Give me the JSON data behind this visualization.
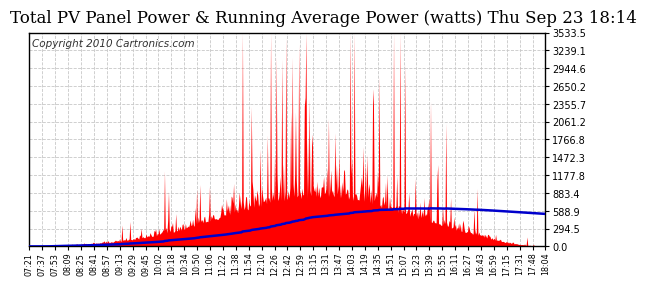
{
  "title": "Total PV Panel Power & Running Average Power (watts) Thu Sep 23 18:14",
  "copyright": "Copyright 2010 Cartronics.com",
  "background_color": "#ffffff",
  "plot_bg_color": "#ffffff",
  "grid_color": "#c8c8c8",
  "bar_color": "#ff0000",
  "line_color": "#0000cc",
  "yticks": [
    0.0,
    294.5,
    588.9,
    883.4,
    1177.8,
    1472.3,
    1766.8,
    2061.2,
    2355.7,
    2650.2,
    2944.6,
    3239.1,
    3533.5
  ],
  "xtick_labels": [
    "07:21",
    "07:37",
    "07:53",
    "08:09",
    "08:25",
    "08:41",
    "08:57",
    "09:13",
    "09:29",
    "09:45",
    "10:02",
    "10:18",
    "10:34",
    "10:50",
    "11:06",
    "11:22",
    "11:38",
    "11:54",
    "12:10",
    "12:26",
    "12:42",
    "12:59",
    "13:15",
    "13:31",
    "13:47",
    "14:03",
    "14:19",
    "14:35",
    "14:51",
    "15:07",
    "15:23",
    "15:39",
    "15:55",
    "16:11",
    "16:27",
    "16:43",
    "16:59",
    "17:15",
    "17:31",
    "17:48",
    "18:04"
  ],
  "ymax": 3533.5,
  "ymin": 0.0,
  "title_fontsize": 12,
  "copyright_fontsize": 7.5
}
